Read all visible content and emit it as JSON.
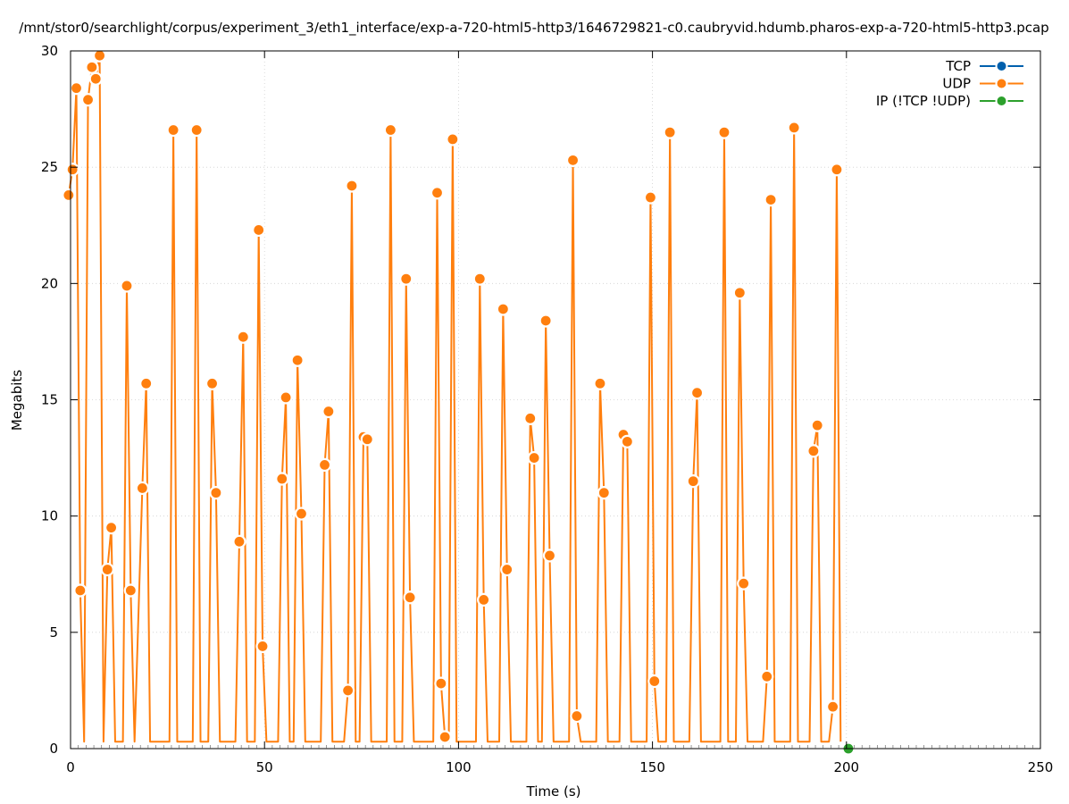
{
  "chart_data": {
    "type": "line",
    "title": "/mnt/stor0/searchlight/corpus/experiment_3/eth1_interface/exp-a-720-html5-http3/1646729821-c0.caubryvid.hdumb.pharos-exp-a-720-html5-http3.pcap",
    "xlabel": "Time (s)",
    "ylabel": "Megabits",
    "xlim": [
      0,
      250
    ],
    "ylim": [
      0,
      30
    ],
    "xticks": [
      0,
      50,
      100,
      150,
      200,
      250
    ],
    "yticks": [
      0,
      5,
      10,
      15,
      20,
      25,
      30
    ],
    "grid": true,
    "legend_position": "top-right",
    "series": [
      {
        "name": "TCP",
        "color": "#0060ad",
        "points": []
      },
      {
        "name": "UDP",
        "color": "#ff7f0e",
        "points": [
          [
            -0.5,
            23.8
          ],
          [
            0.5,
            24.9
          ],
          [
            1.5,
            28.4
          ],
          [
            2.5,
            6.8
          ],
          [
            3.5,
            0.3
          ],
          [
            4.5,
            27.9
          ],
          [
            5.5,
            29.3
          ],
          [
            6.5,
            28.8
          ],
          [
            7.5,
            29.8
          ],
          [
            8.5,
            0.3
          ],
          [
            9.5,
            7.7
          ],
          [
            10.5,
            9.5
          ],
          [
            11.5,
            0.3
          ],
          [
            13.5,
            0.3
          ],
          [
            14.5,
            19.9
          ],
          [
            15.5,
            6.8
          ],
          [
            16.5,
            0.3
          ],
          [
            18.5,
            11.2
          ],
          [
            19.5,
            15.7
          ],
          [
            20.5,
            0.3
          ],
          [
            25.5,
            0.3
          ],
          [
            26.5,
            26.6
          ],
          [
            27.5,
            0.3
          ],
          [
            31.5,
            0.3
          ],
          [
            32.5,
            26.6
          ],
          [
            33.5,
            0.3
          ],
          [
            35.5,
            0.3
          ],
          [
            36.5,
            15.7
          ],
          [
            37.5,
            11.0
          ],
          [
            38.5,
            0.3
          ],
          [
            42.5,
            0.3
          ],
          [
            43.5,
            8.9
          ],
          [
            44.5,
            17.7
          ],
          [
            45.5,
            0.3
          ],
          [
            47.5,
            0.3
          ],
          [
            48.5,
            22.3
          ],
          [
            49.5,
            4.4
          ],
          [
            50.5,
            0.3
          ],
          [
            53.5,
            0.3
          ],
          [
            54.5,
            11.6
          ],
          [
            55.5,
            15.1
          ],
          [
            56.5,
            0.3
          ],
          [
            57.5,
            0.3
          ],
          [
            58.5,
            16.7
          ],
          [
            59.5,
            10.1
          ],
          [
            60.5,
            0.3
          ],
          [
            64.5,
            0.3
          ],
          [
            65.5,
            12.2
          ],
          [
            66.5,
            14.5
          ],
          [
            67.5,
            0.3
          ],
          [
            70.5,
            0.3
          ],
          [
            71.5,
            2.5
          ],
          [
            72.5,
            24.2
          ],
          [
            73.5,
            0.3
          ],
          [
            74.5,
            0.3
          ],
          [
            75.5,
            13.4
          ],
          [
            76.5,
            13.3
          ],
          [
            77.5,
            0.3
          ],
          [
            81.5,
            0.3
          ],
          [
            82.5,
            26.6
          ],
          [
            83.5,
            0.3
          ],
          [
            85.5,
            0.3
          ],
          [
            86.5,
            20.2
          ],
          [
            87.5,
            6.5
          ],
          [
            88.5,
            0.3
          ],
          [
            93.5,
            0.3
          ],
          [
            94.5,
            23.9
          ],
          [
            95.5,
            2.8
          ],
          [
            96.5,
            0.5
          ],
          [
            97.5,
            0.3
          ],
          [
            98.5,
            26.2
          ],
          [
            99.5,
            0.3
          ],
          [
            104.5,
            0.3
          ],
          [
            105.5,
            20.2
          ],
          [
            106.5,
            6.4
          ],
          [
            107.5,
            0.3
          ],
          [
            110.5,
            0.3
          ],
          [
            111.5,
            18.9
          ],
          [
            112.5,
            7.7
          ],
          [
            113.5,
            0.3
          ],
          [
            117.5,
            0.3
          ],
          [
            118.5,
            14.2
          ],
          [
            119.5,
            12.5
          ],
          [
            120.5,
            0.3
          ],
          [
            121.5,
            0.3
          ],
          [
            122.5,
            18.4
          ],
          [
            123.5,
            8.3
          ],
          [
            124.5,
            0.3
          ],
          [
            128.5,
            0.3
          ],
          [
            129.5,
            25.3
          ],
          [
            130.5,
            1.4
          ],
          [
            131.5,
            0.3
          ],
          [
            135.5,
            0.3
          ],
          [
            136.5,
            15.7
          ],
          [
            137.5,
            11.0
          ],
          [
            138.5,
            0.3
          ],
          [
            141.5,
            0.3
          ],
          [
            142.5,
            13.5
          ],
          [
            143.5,
            13.2
          ],
          [
            144.5,
            0.3
          ],
          [
            148.5,
            0.3
          ],
          [
            149.5,
            23.7
          ],
          [
            150.5,
            2.9
          ],
          [
            151.5,
            0.3
          ],
          [
            153.5,
            0.3
          ],
          [
            154.5,
            26.5
          ],
          [
            155.5,
            0.3
          ],
          [
            159.5,
            0.3
          ],
          [
            160.5,
            11.5
          ],
          [
            161.5,
            15.3
          ],
          [
            162.5,
            0.3
          ],
          [
            167.5,
            0.3
          ],
          [
            168.5,
            26.5
          ],
          [
            169.5,
            0.3
          ],
          [
            171.5,
            0.3
          ],
          [
            172.5,
            19.6
          ],
          [
            173.5,
            7.1
          ],
          [
            174.5,
            0.3
          ],
          [
            178.5,
            0.3
          ],
          [
            179.5,
            3.1
          ],
          [
            180.5,
            23.6
          ],
          [
            181.5,
            0.3
          ],
          [
            185.5,
            0.3
          ],
          [
            186.5,
            26.7
          ],
          [
            187.5,
            0.3
          ],
          [
            190.5,
            0.3
          ],
          [
            191.5,
            12.8
          ],
          [
            192.5,
            13.9
          ],
          [
            193.5,
            0.3
          ],
          [
            195.5,
            0.3
          ],
          [
            196.5,
            1.8
          ],
          [
            197.5,
            24.9
          ],
          [
            198.5,
            0.3
          ]
        ]
      },
      {
        "name": "IP (!TCP  !UDP)",
        "color": "#2ca02c",
        "points": [
          [
            200.5,
            0
          ]
        ]
      }
    ]
  }
}
